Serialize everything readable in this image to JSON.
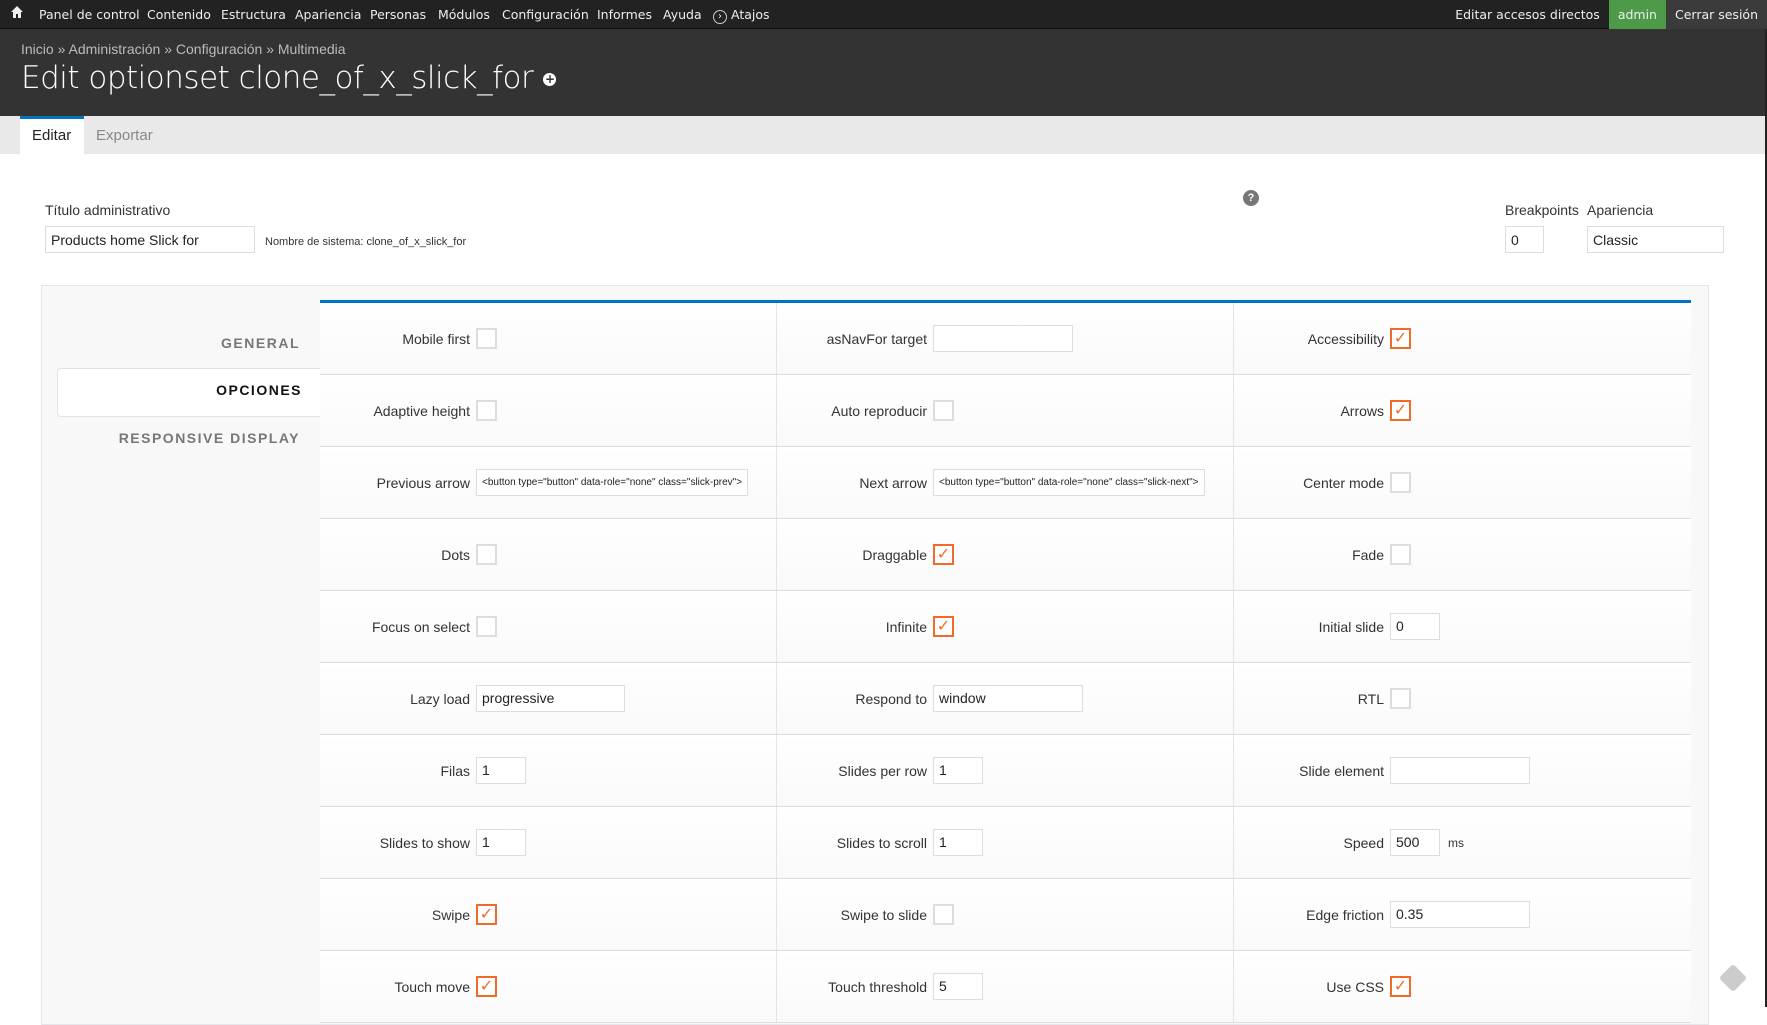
{
  "toolbar": {
    "items": [
      "Panel de control",
      "Contenido",
      "Estructura",
      "Apariencia",
      "Personas",
      "Módulos",
      "Configuración",
      "Informes",
      "Ayuda",
      "Atajos"
    ],
    "edit_shortcuts": "Editar accesos directos",
    "user": "admin",
    "logout": "Cerrar sesión",
    "user_color": "#4d9a48"
  },
  "breadcrumb": [
    "Inicio",
    "Administración",
    "Configuración",
    "Multimedia"
  ],
  "breadcrumb_sep": "»",
  "page_title": "Edit optionset clone_of_x_slick_for",
  "tabs": [
    "Editar",
    "Exportar"
  ],
  "form": {
    "admin_title_label": "Título administrativo",
    "admin_title_value": "Products home Slick for",
    "system_name": "Nombre de sistema: clone_of_x_slick_for",
    "breakpoints_label": "Breakpoints",
    "breakpoints_value": "0",
    "skin_label": "Apariencia",
    "skin_value": "Classic"
  },
  "sidebar": {
    "items": [
      "GENERAL",
      "OPCIONES",
      "RESPONSIVE DISPLAY"
    ],
    "active": "OPCIONES"
  },
  "accent_color": "#0074bd",
  "checkbox_color": "#f06a2a",
  "options": [
    [
      {
        "label": "Mobile first",
        "type": "checkbox",
        "checked": false
      },
      {
        "label": "asNavFor target",
        "type": "text",
        "value": ""
      },
      {
        "label": "Accessibility",
        "type": "checkbox",
        "checked": true
      }
    ],
    [
      {
        "label": "Adaptive height",
        "type": "checkbox",
        "checked": false
      },
      {
        "label": "Auto reproducir",
        "type": "checkbox",
        "checked": false
      },
      {
        "label": "Arrows",
        "type": "checkbox",
        "checked": true
      }
    ],
    [
      {
        "label": "Previous arrow",
        "type": "text",
        "value": "<button type=\"button\" data-role=\"none\" class=\"slick-prev\">"
      },
      {
        "label": "Next arrow",
        "type": "text",
        "value": "<button type=\"button\" data-role=\"none\" class=\"slick-next\">"
      },
      {
        "label": "Center mode",
        "type": "checkbox",
        "checked": false
      }
    ],
    [
      {
        "label": "Dots",
        "type": "checkbox",
        "checked": false
      },
      {
        "label": "Draggable",
        "type": "checkbox",
        "checked": true
      },
      {
        "label": "Fade",
        "type": "checkbox",
        "checked": false
      }
    ],
    [
      {
        "label": "Focus on select",
        "type": "checkbox",
        "checked": false
      },
      {
        "label": "Infinite",
        "type": "checkbox",
        "checked": true
      },
      {
        "label": "Initial slide",
        "type": "number",
        "value": "0"
      }
    ],
    [
      {
        "label": "Lazy load",
        "type": "select",
        "value": "progressive"
      },
      {
        "label": "Respond to",
        "type": "select",
        "value": "window"
      },
      {
        "label": "RTL",
        "type": "checkbox",
        "checked": false
      }
    ],
    [
      {
        "label": "Filas",
        "type": "number",
        "value": "1"
      },
      {
        "label": "Slides per row",
        "type": "number",
        "value": "1"
      },
      {
        "label": "Slide element",
        "type": "text",
        "value": ""
      }
    ],
    [
      {
        "label": "Slides to show",
        "type": "number",
        "value": "1"
      },
      {
        "label": "Slides to scroll",
        "type": "number",
        "value": "1"
      },
      {
        "label": "Speed",
        "type": "number",
        "value": "500",
        "unit": "ms"
      }
    ],
    [
      {
        "label": "Swipe",
        "type": "checkbox",
        "checked": true
      },
      {
        "label": "Swipe to slide",
        "type": "checkbox",
        "checked": false
      },
      {
        "label": "Edge friction",
        "type": "text",
        "value": "0.35"
      }
    ],
    [
      {
        "label": "Touch move",
        "type": "checkbox",
        "checked": true
      },
      {
        "label": "Touch threshold",
        "type": "number",
        "value": "5"
      },
      {
        "label": "Use CSS",
        "type": "checkbox",
        "checked": true
      }
    ]
  ]
}
